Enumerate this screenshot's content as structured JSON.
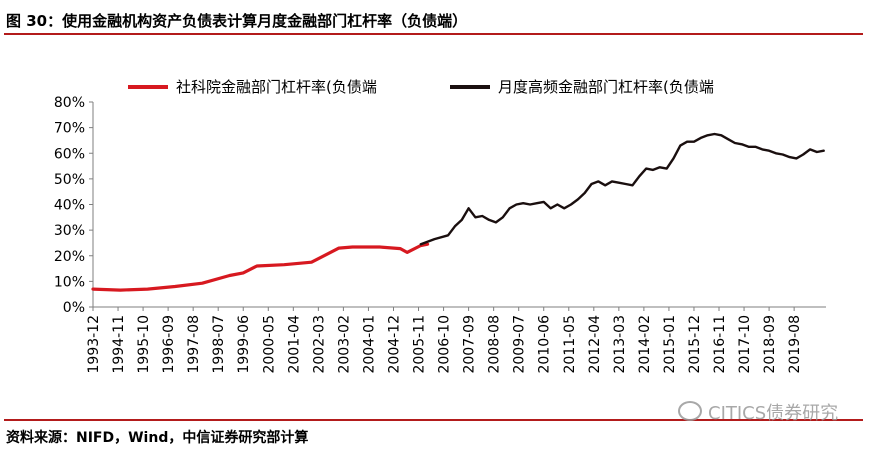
{
  "figure": {
    "title": "图 30：使用金融机构资产负债表计算月度金融部门杠杆率（负债端）",
    "source": "资料来源：NIFD，Wind，中信证券研究部计算",
    "watermark": "CITICS债券研究"
  },
  "chart_data": {
    "type": "line",
    "title": "",
    "xlabel": "",
    "ylabel": "",
    "y_unit": "%",
    "ylim": [
      0,
      80
    ],
    "y_ticks": [
      "0%",
      "10%",
      "20%",
      "30%",
      "40%",
      "50%",
      "60%",
      "70%",
      "80%"
    ],
    "x_range": [
      "1993-12",
      "2020-10"
    ],
    "x_tick_labels": [
      "1993-12",
      "1994-11",
      "1995-10",
      "1996-09",
      "1997-08",
      "1998-07",
      "1999-06",
      "2000-05",
      "2001-04",
      "2002-03",
      "2003-02",
      "2004-01",
      "2004-12",
      "2005-11",
      "2006-10",
      "2007-09",
      "2008-08",
      "2009-07",
      "2010-06",
      "2011-05",
      "2012-04",
      "2013-03",
      "2014-02",
      "2015-01",
      "2015-12",
      "2016-11",
      "2017-10",
      "2018-09",
      "2019-08"
    ],
    "grid": false,
    "legend": "top",
    "series": [
      {
        "name": "社科院金融部门杠杆率(负债端",
        "color": "#d71920",
        "x": [
          "1993-12",
          "1994-12",
          "1995-12",
          "1996-12",
          "1997-12",
          "1998-12",
          "1999-06",
          "1999-12",
          "2000-12",
          "2001-12",
          "2002-12",
          "2003-06",
          "2004-06",
          "2005-03",
          "2005-06",
          "2005-12",
          "2006-03"
        ],
        "y": [
          7.0,
          6.6,
          7.0,
          8.0,
          9.3,
          12.3,
          13.3,
          16.0,
          16.5,
          17.5,
          23.0,
          23.4,
          23.4,
          22.8,
          21.3,
          24.0,
          24.5
        ]
      },
      {
        "name": "月度高频金融部门杠杆率(负债端",
        "color": "#1a0f0f",
        "x": [
          "2005-12",
          "2006-06",
          "2006-12",
          "2007-03",
          "2007-06",
          "2007-09",
          "2007-12",
          "2008-03",
          "2008-06",
          "2008-09",
          "2008-12",
          "2009-03",
          "2009-06",
          "2009-09",
          "2009-12",
          "2010-03",
          "2010-06",
          "2010-09",
          "2010-12",
          "2011-03",
          "2011-06",
          "2011-09",
          "2011-12",
          "2012-03",
          "2012-06",
          "2012-09",
          "2012-12",
          "2013-03",
          "2013-06",
          "2013-09",
          "2013-12",
          "2014-03",
          "2014-06",
          "2014-09",
          "2014-12",
          "2015-03",
          "2015-06",
          "2015-09",
          "2015-12",
          "2016-03",
          "2016-06",
          "2016-09",
          "2016-12",
          "2017-03",
          "2017-06",
          "2017-09",
          "2017-12",
          "2018-03",
          "2018-06",
          "2018-09",
          "2018-12",
          "2019-03",
          "2019-06",
          "2019-09",
          "2019-12",
          "2020-03",
          "2020-06",
          "2020-09"
        ],
        "y": [
          24.5,
          26.5,
          28.0,
          31.5,
          34.0,
          38.5,
          35.0,
          35.5,
          34.0,
          33.0,
          35.0,
          38.5,
          40.0,
          40.5,
          40.0,
          40.5,
          41.0,
          38.5,
          40.0,
          38.5,
          40.0,
          42.0,
          44.5,
          48.0,
          49.0,
          47.5,
          49.0,
          48.5,
          48.0,
          47.5,
          51.0,
          54.0,
          53.5,
          54.5,
          54.0,
          58.0,
          63.0,
          64.5,
          64.5,
          66.0,
          67.0,
          67.5,
          67.0,
          65.5,
          64.0,
          63.5,
          62.5,
          62.5,
          61.5,
          61.0,
          60.0,
          59.5,
          58.5,
          58.0,
          59.5,
          61.5,
          60.5,
          61.0
        ]
      }
    ]
  }
}
